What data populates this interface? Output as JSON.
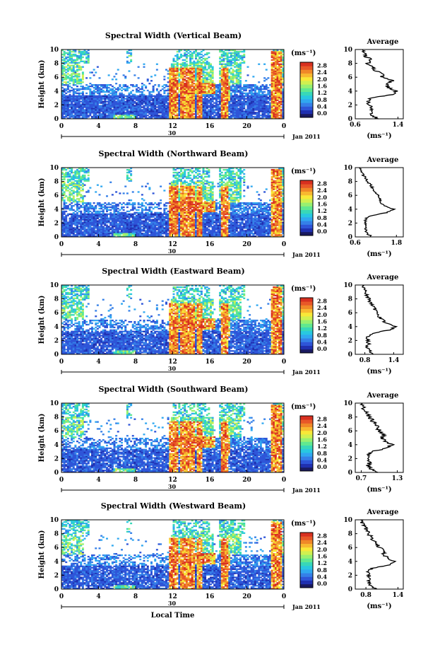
{
  "figure": {
    "xlabel": "Local Time",
    "ylabel": "Height (km)",
    "day_label": "30",
    "month_label": "Jan 2011",
    "colorbar_unit": "(ms⁻¹)",
    "colorbar_ticks": [
      "0.0",
      "0.4",
      "0.8",
      "1.2",
      "1.6",
      "2.0",
      "2.4",
      "2.8"
    ],
    "profile_title": "Average",
    "profile_xlabel": "(ms⁻¹)",
    "cmap": [
      "#1a1a60",
      "#2030b0",
      "#2e55d8",
      "#3580e8",
      "#30a8f0",
      "#28c8e0",
      "#38d8b8",
      "#60e890",
      "#98f070",
      "#d0f050",
      "#f8e838",
      "#f8b830",
      "#f08828",
      "#e85828",
      "#d83020"
    ],
    "vmax": 3.0
  },
  "chart_data": [
    {
      "type": "heatmap",
      "title": "Spectral Width (Vertical Beam)",
      "x": [
        0,
        24
      ],
      "xticks": [
        "0",
        "4",
        "8",
        "12",
        "16",
        "20",
        "0"
      ],
      "ylim": [
        0,
        10
      ],
      "yticks": [
        "0",
        "2",
        "4",
        "6",
        "8",
        "10"
      ],
      "zlabel": "(ms⁻¹)",
      "zlim": [
        0.0,
        3.0
      ],
      "average_profile": {
        "title": "Average",
        "xlim": [
          0.6,
          1.5
        ],
        "xticks": [
          "0.6",
          "1.4"
        ],
        "height_km": [
          0.0,
          0.5,
          1.0,
          1.5,
          2.0,
          2.5,
          3.0,
          3.5,
          4.0,
          4.5,
          5.0,
          5.5,
          6.0,
          6.5,
          7.0,
          7.5,
          8.0,
          8.5,
          9.0,
          9.5,
          10.0
        ],
        "width": [
          1.02,
          0.92,
          0.88,
          0.9,
          0.86,
          0.84,
          0.9,
          1.32,
          1.36,
          1.22,
          1.18,
          1.3,
          1.1,
          1.12,
          0.98,
          0.92,
          0.84,
          0.9,
          0.8,
          0.76,
          0.74
        ]
      }
    },
    {
      "type": "heatmap",
      "title": "Spectral Width (Northward Beam)",
      "x": [
        0,
        24
      ],
      "xticks": [
        "0",
        "4",
        "8",
        "12",
        "16",
        "20",
        "0"
      ],
      "ylim": [
        0,
        10
      ],
      "yticks": [
        "0",
        "2",
        "4",
        "6",
        "8",
        "10"
      ],
      "zlabel": "(ms⁻¹)",
      "zlim": [
        0.0,
        3.0
      ],
      "average_profile": {
        "title": "Average",
        "xlim": [
          0.6,
          2.0
        ],
        "xticks": [
          "0.6",
          "1.8"
        ],
        "height_km": [
          0.0,
          0.5,
          1.0,
          1.5,
          2.0,
          2.5,
          3.0,
          3.5,
          4.0,
          4.5,
          5.0,
          5.5,
          6.0,
          6.5,
          7.0,
          7.5,
          8.0,
          8.5,
          9.0,
          9.5,
          10.0
        ],
        "width": [
          1.1,
          0.95,
          0.9,
          0.92,
          0.9,
          0.88,
          1.0,
          1.5,
          1.72,
          1.45,
          1.3,
          1.35,
          1.25,
          1.15,
          1.1,
          1.05,
          0.95,
          0.9,
          0.82,
          0.78,
          0.72
        ]
      }
    },
    {
      "type": "heatmap",
      "title": "Spectral Width (Eastward Beam)",
      "x": [
        0,
        24
      ],
      "xticks": [
        "0",
        "4",
        "8",
        "12",
        "16",
        "20",
        "0"
      ],
      "ylim": [
        0,
        10
      ],
      "yticks": [
        "0",
        "2",
        "4",
        "6",
        "8",
        "10"
      ],
      "zlabel": "(ms⁻¹)",
      "zlim": [
        0.0,
        3.0
      ],
      "average_profile": {
        "title": "Average",
        "xlim": [
          0.6,
          1.6
        ],
        "xticks": [
          "0.8",
          "1.4"
        ],
        "height_km": [
          0.0,
          0.5,
          1.0,
          1.5,
          2.0,
          2.5,
          3.0,
          3.5,
          4.0,
          4.5,
          5.0,
          5.5,
          6.0,
          6.5,
          7.0,
          7.5,
          8.0,
          8.5,
          9.0,
          9.5,
          10.0
        ],
        "width": [
          1.0,
          0.9,
          0.85,
          0.88,
          0.86,
          0.84,
          0.95,
          1.3,
          1.45,
          1.25,
          1.15,
          1.1,
          1.05,
          1.0,
          0.98,
          0.92,
          0.88,
          0.85,
          0.8,
          0.78,
          0.75
        ]
      }
    },
    {
      "type": "heatmap",
      "title": "Spectral Width (Southward Beam)",
      "x": [
        0,
        24
      ],
      "xticks": [
        "0",
        "4",
        "8",
        "12",
        "16",
        "20",
        "0"
      ],
      "ylim": [
        0,
        10
      ],
      "yticks": [
        "0",
        "2",
        "4",
        "6",
        "8",
        "10"
      ],
      "zlabel": "(ms⁻¹)",
      "zlim": [
        0.0,
        3.0
      ],
      "average_profile": {
        "title": "Average",
        "xlim": [
          0.6,
          1.4
        ],
        "xticks": [
          "0.7",
          "1.3"
        ],
        "height_km": [
          0.0,
          0.5,
          1.0,
          1.5,
          2.0,
          2.5,
          3.0,
          3.5,
          4.0,
          4.5,
          5.0,
          5.5,
          6.0,
          6.5,
          7.0,
          7.5,
          8.0,
          8.5,
          9.0,
          9.5,
          10.0
        ],
        "width": [
          0.95,
          0.85,
          0.82,
          0.84,
          0.82,
          0.8,
          0.88,
          1.1,
          1.22,
          1.1,
          1.05,
          1.08,
          1.0,
          0.98,
          0.92,
          0.88,
          0.84,
          0.8,
          0.76,
          0.72,
          0.7
        ]
      }
    },
    {
      "type": "heatmap",
      "title": "Spectral Width (Westward Beam)",
      "x": [
        0,
        24
      ],
      "xticks": [
        "0",
        "4",
        "8",
        "12",
        "16",
        "20",
        "0"
      ],
      "ylim": [
        0,
        10
      ],
      "yticks": [
        "0",
        "2",
        "4",
        "6",
        "8",
        "10"
      ],
      "zlabel": "(ms⁻¹)",
      "zlim": [
        0.0,
        3.0
      ],
      "average_profile": {
        "title": "Average",
        "xlim": [
          0.6,
          1.5
        ],
        "xticks": [
          "0.8",
          "1.4"
        ],
        "height_km": [
          0.0,
          0.5,
          1.0,
          1.5,
          2.0,
          2.5,
          3.0,
          3.5,
          4.0,
          4.5,
          5.0,
          5.5,
          6.0,
          6.5,
          7.0,
          7.5,
          8.0,
          8.5,
          9.0,
          9.5,
          10.0
        ],
        "width": [
          1.0,
          0.9,
          0.85,
          0.88,
          0.86,
          0.84,
          0.92,
          1.25,
          1.35,
          1.2,
          1.12,
          1.15,
          1.05,
          1.02,
          0.95,
          0.9,
          0.85,
          0.82,
          0.78,
          0.74,
          0.7
        ]
      }
    }
  ]
}
